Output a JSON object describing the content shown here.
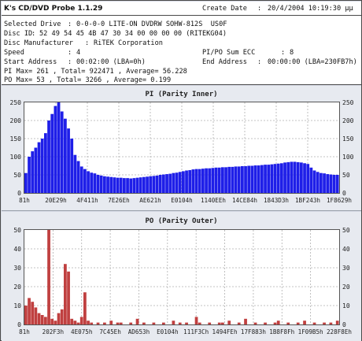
{
  "app": {
    "title": "K's CD/DVD Probe 1.1.29"
  },
  "info": {
    "create_date_label": "Create Date",
    "create_date_value": "20/4/2004 10:19:30 µµ",
    "selected_drive_label": "Selected Drive",
    "selected_drive_value": "0-0-0-0 LITE-ON DVDRW SOHW-812S  US0F",
    "disc_id_label": "Disc ID",
    "disc_id_value": "52 49 54 45 4B 47 30 34 00 00 00 00 (RITEKG04)",
    "disc_manufacturer_label": "Disc Manufacturer",
    "disc_manufacturer_value": "RiTEK Corporation",
    "speed_label": "Speed",
    "speed_value": "4",
    "pipo_sum_label": "PI/PO Sum ECC",
    "pipo_sum_value": "8",
    "start_address_label": "Start Address",
    "start_address_value": "00:02:00 (LBA=0h)",
    "end_address_label": "End Address",
    "end_address_value": "00:00:00 (LBA=230FB7h)",
    "pi_stats": "PI Max= 261 , Total= 922471 , Average= 56.228",
    "po_stats": "PO Max= 53 , Total= 3266 , Average= 0.199"
  },
  "colors": {
    "pi_series": "#1f1fe8",
    "po_series": "#c04040",
    "grid": "#b0b0b0"
  },
  "chart_data": [
    {
      "type": "bar",
      "title": "PI (Parity Inner)",
      "ylim": [
        0,
        250
      ],
      "yticks": [
        0,
        50,
        100,
        150,
        200,
        250
      ],
      "x_tick_labels": [
        "81h",
        "20E29h",
        "4F411h",
        "7E26Eh",
        "AE621h",
        "E0104h",
        "1140EEh",
        "14CE84h",
        "1843D3h",
        "1BF243h",
        "1F8629h"
      ],
      "grid": true,
      "series": [
        {
          "values": [
            55,
            100,
            115,
            125,
            140,
            150,
            165,
            200,
            218,
            240,
            255,
            225,
            205,
            178,
            150,
            105,
            88,
            73,
            66,
            60,
            56,
            54,
            50,
            48,
            46,
            45,
            44,
            43,
            42,
            42,
            41,
            41,
            40,
            41,
            42,
            43,
            44,
            45,
            46,
            47,
            48,
            50,
            51,
            52,
            53,
            55,
            56,
            58,
            60,
            62,
            63,
            65,
            66,
            66,
            67,
            68,
            68,
            69,
            70,
            70,
            71,
            71,
            72,
            72,
            73,
            73,
            74,
            74,
            75,
            75,
            76,
            76,
            77,
            78,
            78,
            79,
            80,
            81,
            82,
            84,
            85,
            86,
            86,
            85,
            84,
            82,
            80,
            70,
            62,
            58,
            55,
            54,
            52,
            51,
            50,
            50
          ]
        }
      ]
    },
    {
      "type": "bar",
      "title": "PO (Parity Outer)",
      "ylim": [
        0,
        50
      ],
      "yticks": [
        0,
        10,
        20,
        30,
        40,
        50
      ],
      "x_tick_labels": [
        "81h",
        "202F3h",
        "4E075h",
        "7C45Eh",
        "AD653h",
        "E0104h",
        "111F3Ch",
        "1494FEh",
        "17F883h",
        "1B8F8Fh",
        "1F09B5h",
        "228F8Eh"
      ],
      "grid": true,
      "series": [
        {
          "values": [
            10,
            14,
            12,
            9,
            6,
            5,
            4,
            53,
            3,
            2,
            6,
            8,
            32,
            28,
            3,
            2,
            1,
            4,
            17,
            2,
            1,
            0,
            1,
            0,
            1,
            0,
            2,
            0,
            1,
            1,
            0,
            0,
            1,
            0,
            3,
            0,
            1,
            0,
            0,
            1,
            0,
            0,
            1,
            0,
            0,
            2,
            0,
            1,
            0,
            1,
            0,
            0,
            4,
            1,
            0,
            0,
            1,
            0,
            0,
            1,
            1,
            0,
            2,
            0,
            0,
            1,
            0,
            3,
            0,
            0,
            1,
            0,
            0,
            1,
            0,
            0,
            1,
            2,
            0,
            0,
            1,
            0,
            0,
            1,
            0,
            2,
            0,
            0,
            1,
            0,
            0,
            1,
            0,
            1,
            0,
            2
          ]
        }
      ]
    }
  ]
}
